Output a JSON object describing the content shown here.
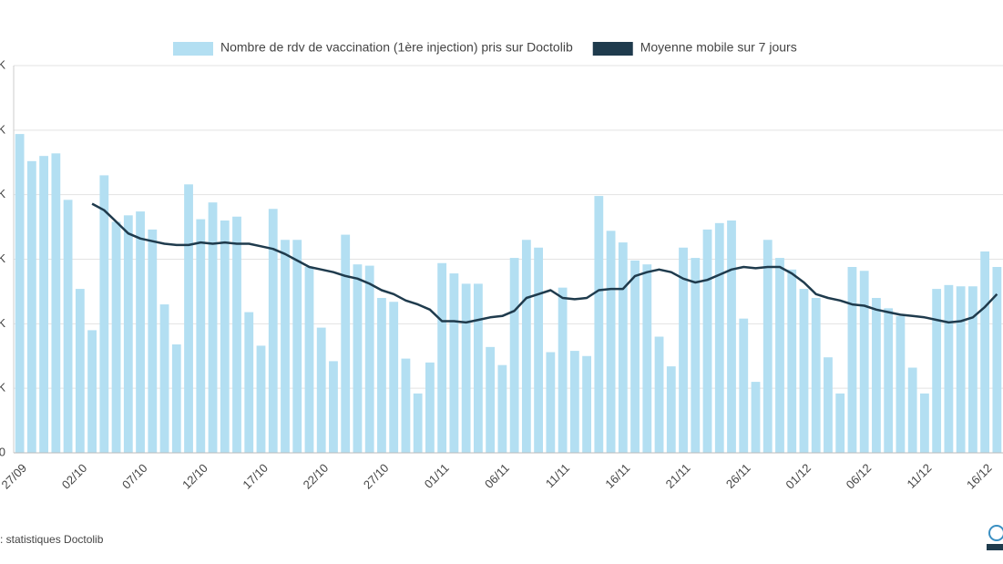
{
  "chart_data": {
    "type": "bar",
    "series": [
      {
        "name": "Nombre de rdv de vaccination (1ère injection) pris sur Doctolib",
        "color": "#b3dff2",
        "type": "bar",
        "values": [
          24700,
          22600,
          23000,
          23200,
          19600,
          12700,
          9500,
          21500,
          17900,
          18400,
          18700,
          17300,
          11500,
          8400,
          20800,
          18100,
          19400,
          18000,
          18300,
          10900,
          8300,
          18900,
          16500,
          16500,
          14400,
          9700,
          7100,
          16900,
          14600,
          14500,
          12000,
          11700,
          7300,
          4600,
          7000,
          14700,
          13900,
          13100,
          13100,
          8200,
          6800,
          15100,
          16500,
          15900,
          7800,
          12800,
          7900,
          7500,
          19900,
          17200,
          16300,
          14900,
          14600,
          9000,
          6700,
          15900,
          15100,
          17300,
          17800,
          18000,
          10400,
          5500,
          16500,
          15100,
          14200,
          12700,
          12000,
          7400,
          4600,
          14400,
          14100,
          12000,
          11200,
          10600,
          6600,
          4600,
          12700,
          13000,
          12900,
          12900,
          15600,
          14400
        ]
      },
      {
        "name": "Moyenne mobile sur 7 jours",
        "color": "#1f3b4d",
        "type": "line",
        "values": [
          null,
          null,
          null,
          null,
          null,
          null,
          19300,
          18800,
          17900,
          17000,
          16600,
          16400,
          16200,
          16100,
          16100,
          16300,
          16200,
          16300,
          16200,
          16200,
          16000,
          15800,
          15400,
          14900,
          14400,
          14200,
          14000,
          13700,
          13500,
          13100,
          12600,
          12300,
          11800,
          11500,
          11100,
          10200,
          10200,
          10100,
          10300,
          10500,
          10600,
          11000,
          12000,
          12300,
          12600,
          12000,
          11900,
          12000,
          12600,
          12700,
          12700,
          13700,
          14000,
          14200,
          14000,
          13500,
          13200,
          13400,
          13800,
          14200,
          14400,
          14300,
          14400,
          14400,
          13900,
          13200,
          12300,
          12000,
          11800,
          11500,
          11400,
          11100,
          10900,
          10700,
          10600,
          10500,
          10300,
          10100,
          10200,
          10500,
          11300,
          12300
        ]
      }
    ],
    "categories": [
      "27/09",
      null,
      null,
      null,
      null,
      "02/10",
      null,
      null,
      null,
      null,
      "07/10",
      null,
      null,
      null,
      null,
      "12/10",
      null,
      null,
      null,
      null,
      "17/10",
      null,
      null,
      null,
      null,
      "22/10",
      null,
      null,
      null,
      null,
      "27/10",
      null,
      null,
      null,
      null,
      "01/11",
      null,
      null,
      null,
      null,
      "06/11",
      null,
      null,
      null,
      null,
      "11/11",
      null,
      null,
      null,
      null,
      "16/11",
      null,
      null,
      null,
      null,
      "21/11",
      null,
      null,
      null,
      null,
      "26/11",
      null,
      null,
      null,
      null,
      "01/12",
      null,
      null,
      null,
      null,
      "06/12",
      null,
      null,
      null,
      null,
      "11/12",
      null,
      null,
      null,
      null,
      "16/12",
      null
    ],
    "ylim": [
      0,
      30000
    ],
    "yticks": [
      0,
      {
        "value": 5000,
        "label": "K"
      },
      {
        "value": 10000,
        "label": "K"
      },
      {
        "value": 15000,
        "label": "K"
      },
      {
        "value": 20000,
        "label": "K"
      },
      {
        "value": 25000,
        "label": "K"
      },
      {
        "value": 30000,
        "label": "K"
      }
    ],
    "grid": true,
    "legend": "top",
    "source": ": statistiques Doctolib"
  }
}
